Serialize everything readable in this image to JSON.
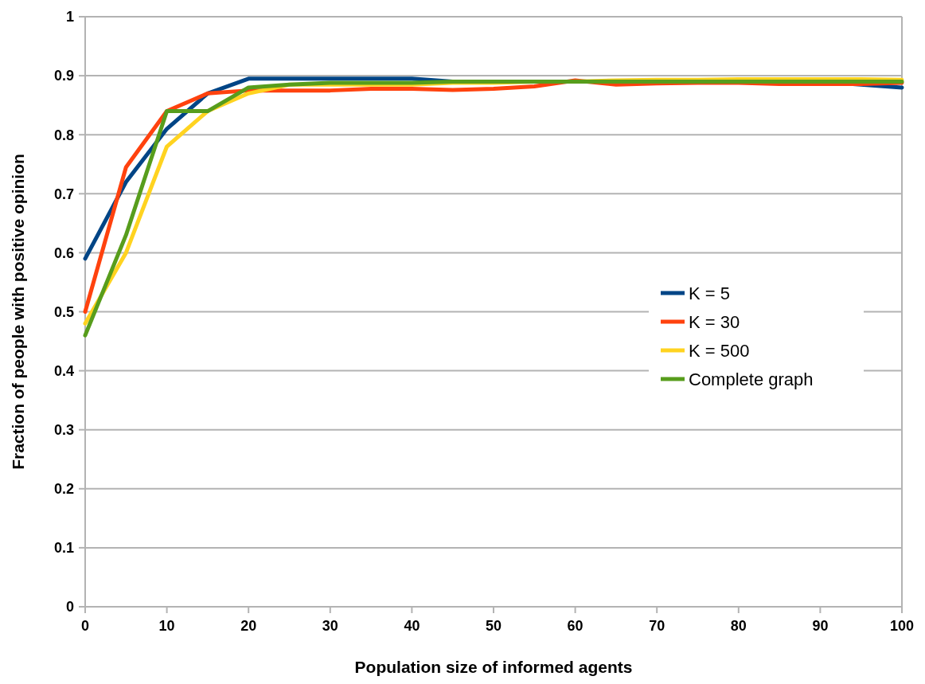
{
  "chart_data": {
    "type": "line",
    "xlabel": "Population size of informed agents",
    "ylabel": "Fraction of people with positive opinion",
    "x": [
      0,
      5,
      10,
      15,
      20,
      25,
      30,
      35,
      40,
      45,
      50,
      55,
      60,
      65,
      70,
      75,
      80,
      85,
      90,
      95,
      100
    ],
    "series": [
      {
        "name": "K = 5",
        "color": "#004586",
        "values": [
          0.59,
          0.72,
          0.81,
          0.87,
          0.895,
          0.895,
          0.895,
          0.895,
          0.895,
          0.89,
          0.89,
          0.89,
          0.89,
          0.89,
          0.89,
          0.89,
          0.89,
          0.89,
          0.89,
          0.885,
          0.88
        ]
      },
      {
        "name": "K = 30",
        "color": "#ff420e",
        "values": [
          0.5,
          0.745,
          0.84,
          0.87,
          0.875,
          0.875,
          0.875,
          0.878,
          0.878,
          0.876,
          0.878,
          0.882,
          0.892,
          0.885,
          0.887,
          0.888,
          0.888,
          0.886,
          0.886,
          0.886,
          0.888
        ]
      },
      {
        "name": "K = 500",
        "color": "#ffd320",
        "values": [
          0.48,
          0.6,
          0.78,
          0.84,
          0.87,
          0.885,
          0.885,
          0.885,
          0.885,
          0.888,
          0.888,
          0.89,
          0.89,
          0.892,
          0.893,
          0.893,
          0.894,
          0.894,
          0.894,
          0.894,
          0.893
        ]
      },
      {
        "name": "Complete graph",
        "color": "#579d1c",
        "values": [
          0.46,
          0.63,
          0.84,
          0.84,
          0.88,
          0.885,
          0.888,
          0.888,
          0.888,
          0.89,
          0.89,
          0.89,
          0.89,
          0.89,
          0.89,
          0.89,
          0.89,
          0.89,
          0.89,
          0.89,
          0.89
        ]
      }
    ],
    "xlim": [
      0,
      100
    ],
    "xticks": [
      0,
      10,
      20,
      30,
      40,
      50,
      60,
      70,
      80,
      90,
      100
    ],
    "ylim": [
      0,
      1
    ],
    "yticks": [
      0,
      0.1,
      0.2,
      0.3,
      0.4,
      0.5,
      0.6,
      0.7,
      0.8,
      0.9,
      1
    ],
    "grid": "y",
    "legend": "right",
    "line_style": "solid",
    "marker": "none"
  }
}
